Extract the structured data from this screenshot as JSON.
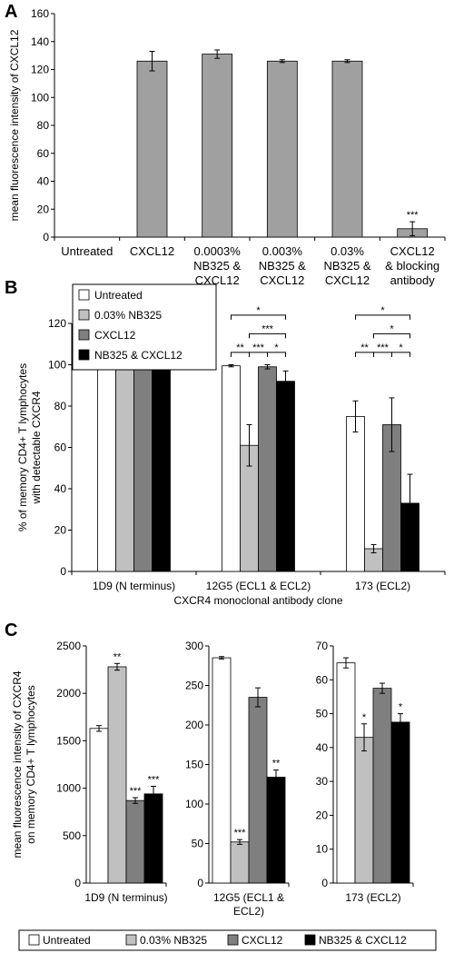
{
  "panels": {
    "A": {
      "letter": "A"
    },
    "B": {
      "letter": "B"
    },
    "C": {
      "letter": "C"
    }
  },
  "chart_data": [
    {
      "panel": "A",
      "type": "bar",
      "ylabel": "mean fluorescence intensity of CXCL12",
      "xlabel": "",
      "ylim": [
        0,
        160
      ],
      "yticks": [
        0,
        20,
        40,
        60,
        80,
        100,
        120,
        140,
        160
      ],
      "grid": false,
      "categories": [
        [
          "Untreated"
        ],
        [
          "CXCL12"
        ],
        [
          "0.0003%",
          "NB325 &",
          "CXCL12"
        ],
        [
          "0.003%",
          "NB325 &",
          "CXCL12"
        ],
        [
          "0.03%",
          "NB325 &",
          "CXCL12"
        ],
        [
          "CXCL12",
          "& blocking",
          "antibody"
        ]
      ],
      "values": [
        0,
        126,
        131,
        126,
        126,
        6
      ],
      "errors": [
        0,
        7,
        3,
        1,
        1,
        5
      ],
      "annotations": [
        "",
        "",
        "",
        "",
        "",
        "***"
      ],
      "color": "#a0a0a0"
    },
    {
      "panel": "B",
      "type": "bar",
      "ylabel": "% of memory CD4+ T lymphocytes with detectable CXCR4",
      "ylabel_lines": [
        "% of memory CD4+ T lymphocytes",
        "with detectable CXCR4"
      ],
      "xlabel": "CXCR4 monoclonal antibody clone",
      "ylim": [
        0,
        120
      ],
      "yticks": [
        0,
        20,
        40,
        60,
        80,
        100,
        120
      ],
      "grid": false,
      "legend": {
        "placement": "top-left",
        "entries": [
          "Untreated",
          "0.03% NB325",
          "CXCL12",
          "NB325 & CXCL12"
        ]
      },
      "categories": [
        "1D9 (N terminus)",
        "12G5 (ECL1 & ECL2)",
        "173 (ECL2)"
      ],
      "series": [
        {
          "name": "Untreated",
          "color": "#ffffff",
          "values": [
            100,
            99.5,
            75
          ],
          "errors": [
            0.3,
            0.5,
            7.5
          ]
        },
        {
          "name": "0.03% NB325",
          "color": "#c0c0c0",
          "values": [
            100,
            61,
            11
          ],
          "errors": [
            0.3,
            10,
            2
          ]
        },
        {
          "name": "CXCL12",
          "color": "#7f7f7f",
          "values": [
            100,
            99,
            71
          ],
          "errors": [
            0.3,
            1,
            13
          ]
        },
        {
          "name": "NB325 & CXCL12",
          "color": "#000000",
          "values": [
            100,
            92,
            33
          ],
          "errors": [
            0.3,
            5,
            14
          ]
        }
      ],
      "significance": [
        {
          "group": 1,
          "from": 0,
          "to": 1,
          "y": 106,
          "label": "**"
        },
        {
          "group": 1,
          "from": 1,
          "to": 2,
          "y": 106,
          "label": "***"
        },
        {
          "group": 1,
          "from": 2,
          "to": 3,
          "y": 106,
          "label": "*"
        },
        {
          "group": 1,
          "from": 1,
          "to": 3,
          "y": 115,
          "label": "***"
        },
        {
          "group": 1,
          "from": 0,
          "to": 3,
          "y": 124,
          "label": "*"
        },
        {
          "group": 2,
          "from": 0,
          "to": 1,
          "y": 106,
          "label": "**"
        },
        {
          "group": 2,
          "from": 1,
          "to": 2,
          "y": 106,
          "label": "***"
        },
        {
          "group": 2,
          "from": 2,
          "to": 3,
          "y": 106,
          "label": "*"
        },
        {
          "group": 2,
          "from": 1,
          "to": 3,
          "y": 115,
          "label": "*"
        },
        {
          "group": 2,
          "from": 0,
          "to": 3,
          "y": 124,
          "label": "*"
        }
      ]
    },
    {
      "panel": "C1",
      "type": "bar",
      "ylabel": "mean fluorescence intensity of CXCR4 on memory CD4+ T lymphocytes",
      "ylabel_lines": [
        "mean fluorescence intensity of CXCR4",
        "on memory CD4+ T lymphocytes"
      ],
      "xlabel": [
        "1D9 (N terminus)"
      ],
      "ylim": [
        0,
        2500
      ],
      "yticks": [
        0,
        500,
        1000,
        1500,
        2000,
        2500
      ],
      "series": [
        {
          "name": "Untreated",
          "color": "#ffffff",
          "value": 1630,
          "error": 30,
          "annotation": ""
        },
        {
          "name": "0.03% NB325",
          "color": "#c0c0c0",
          "value": 2280,
          "error": 35,
          "annotation": "**"
        },
        {
          "name": "CXCL12",
          "color": "#7f7f7f",
          "value": 870,
          "error": 30,
          "annotation": "***"
        },
        {
          "name": "NB325 & CXCL12",
          "color": "#000000",
          "value": 940,
          "error": 80,
          "annotation": "***"
        }
      ]
    },
    {
      "panel": "C2",
      "type": "bar",
      "xlabel": [
        "12G5 (ECL1 &",
        "ECL2)"
      ],
      "ylim": [
        0,
        300
      ],
      "yticks": [
        0,
        50,
        100,
        150,
        200,
        250,
        300
      ],
      "series": [
        {
          "name": "Untreated",
          "color": "#ffffff",
          "value": 285,
          "error": 1.5,
          "annotation": ""
        },
        {
          "name": "0.03% NB325",
          "color": "#c0c0c0",
          "value": 52,
          "error": 3,
          "annotation": "***"
        },
        {
          "name": "CXCL12",
          "color": "#7f7f7f",
          "value": 235,
          "error": 12,
          "annotation": ""
        },
        {
          "name": "NB325 & CXCL12",
          "color": "#000000",
          "value": 134,
          "error": 9,
          "annotation": "**"
        }
      ]
    },
    {
      "panel": "C3",
      "type": "bar",
      "xlabel": [
        "173 (ECL2)"
      ],
      "ylim": [
        0,
        70
      ],
      "yticks": [
        0,
        10,
        20,
        30,
        40,
        50,
        60,
        70
      ],
      "series": [
        {
          "name": "Untreated",
          "color": "#ffffff",
          "value": 65,
          "error": 1.5,
          "annotation": ""
        },
        {
          "name": "0.03% NB325",
          "color": "#c0c0c0",
          "value": 43,
          "error": 4,
          "annotation": "*"
        },
        {
          "name": "CXCL12",
          "color": "#7f7f7f",
          "value": 57.5,
          "error": 1.5,
          "annotation": ""
        },
        {
          "name": "NB325 & CXCL12",
          "color": "#000000",
          "value": 47.5,
          "error": 2.5,
          "annotation": "*"
        }
      ]
    }
  ],
  "bottom_legend": {
    "entries": [
      {
        "label": "Untreated",
        "color": "#ffffff"
      },
      {
        "label": "0.03% NB325",
        "color": "#c0c0c0"
      },
      {
        "label": "CXCL12",
        "color": "#7f7f7f"
      },
      {
        "label": "NB325 & CXCL12",
        "color": "#000000"
      }
    ]
  }
}
